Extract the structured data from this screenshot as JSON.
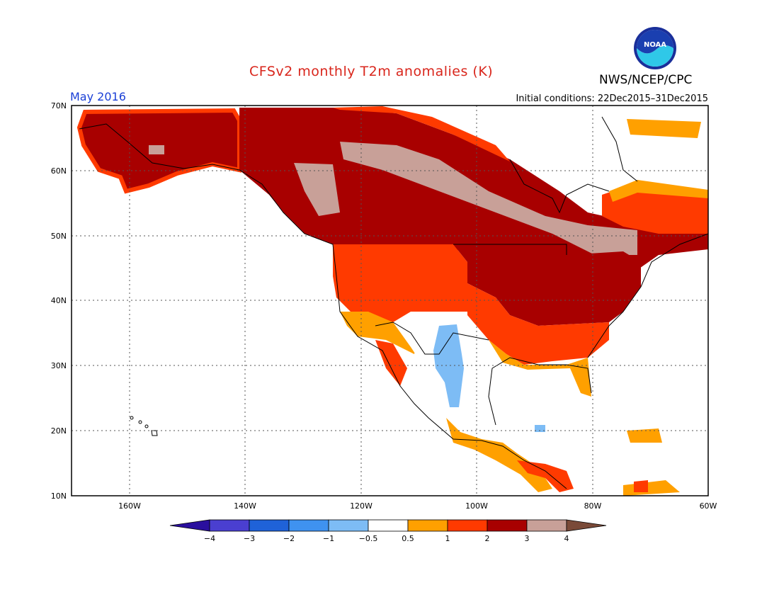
{
  "header": {
    "title": "CFSv2 monthly T2m anomalies (K)",
    "agency": "NWS/NCEP/CPC",
    "period": "May 2016",
    "initial_conditions": "Initial conditions: 22Dec2015–31Dec2015",
    "logo_text": "NOAA"
  },
  "map": {
    "lat_labels": [
      "70N",
      "60N",
      "50N",
      "40N",
      "30N",
      "20N",
      "10N"
    ],
    "lon_labels": [
      "160W",
      "140W",
      "120W",
      "100W",
      "80W",
      "60W"
    ],
    "grid": "dotted"
  },
  "colorbar": {
    "labels": [
      "−4",
      "−3",
      "−2",
      "−1",
      "−0.5",
      "0.5",
      "1",
      "2",
      "3",
      "4"
    ],
    "bins": [
      {
        "range": "< -4",
        "color": "#2a0f9e"
      },
      {
        "range": "-4 to -3",
        "color": "#4a3fd0"
      },
      {
        "range": "-3 to -2",
        "color": "#1f62d8"
      },
      {
        "range": "-2 to -1",
        "color": "#3f92f0"
      },
      {
        "range": "-1 to -0.5",
        "color": "#7dbcf5"
      },
      {
        "range": "-0.5 to 0.5",
        "color": "#ffffff"
      },
      {
        "range": "0.5 to 1",
        "color": "#ffa000"
      },
      {
        "range": "1 to 2",
        "color": "#ff3a00"
      },
      {
        "range": "2 to 3",
        "color": "#a80000"
      },
      {
        "range": "3 to 4",
        "color": "#c8a098"
      },
      {
        "range": "> 4",
        "color": "#7a4a38"
      }
    ]
  }
}
